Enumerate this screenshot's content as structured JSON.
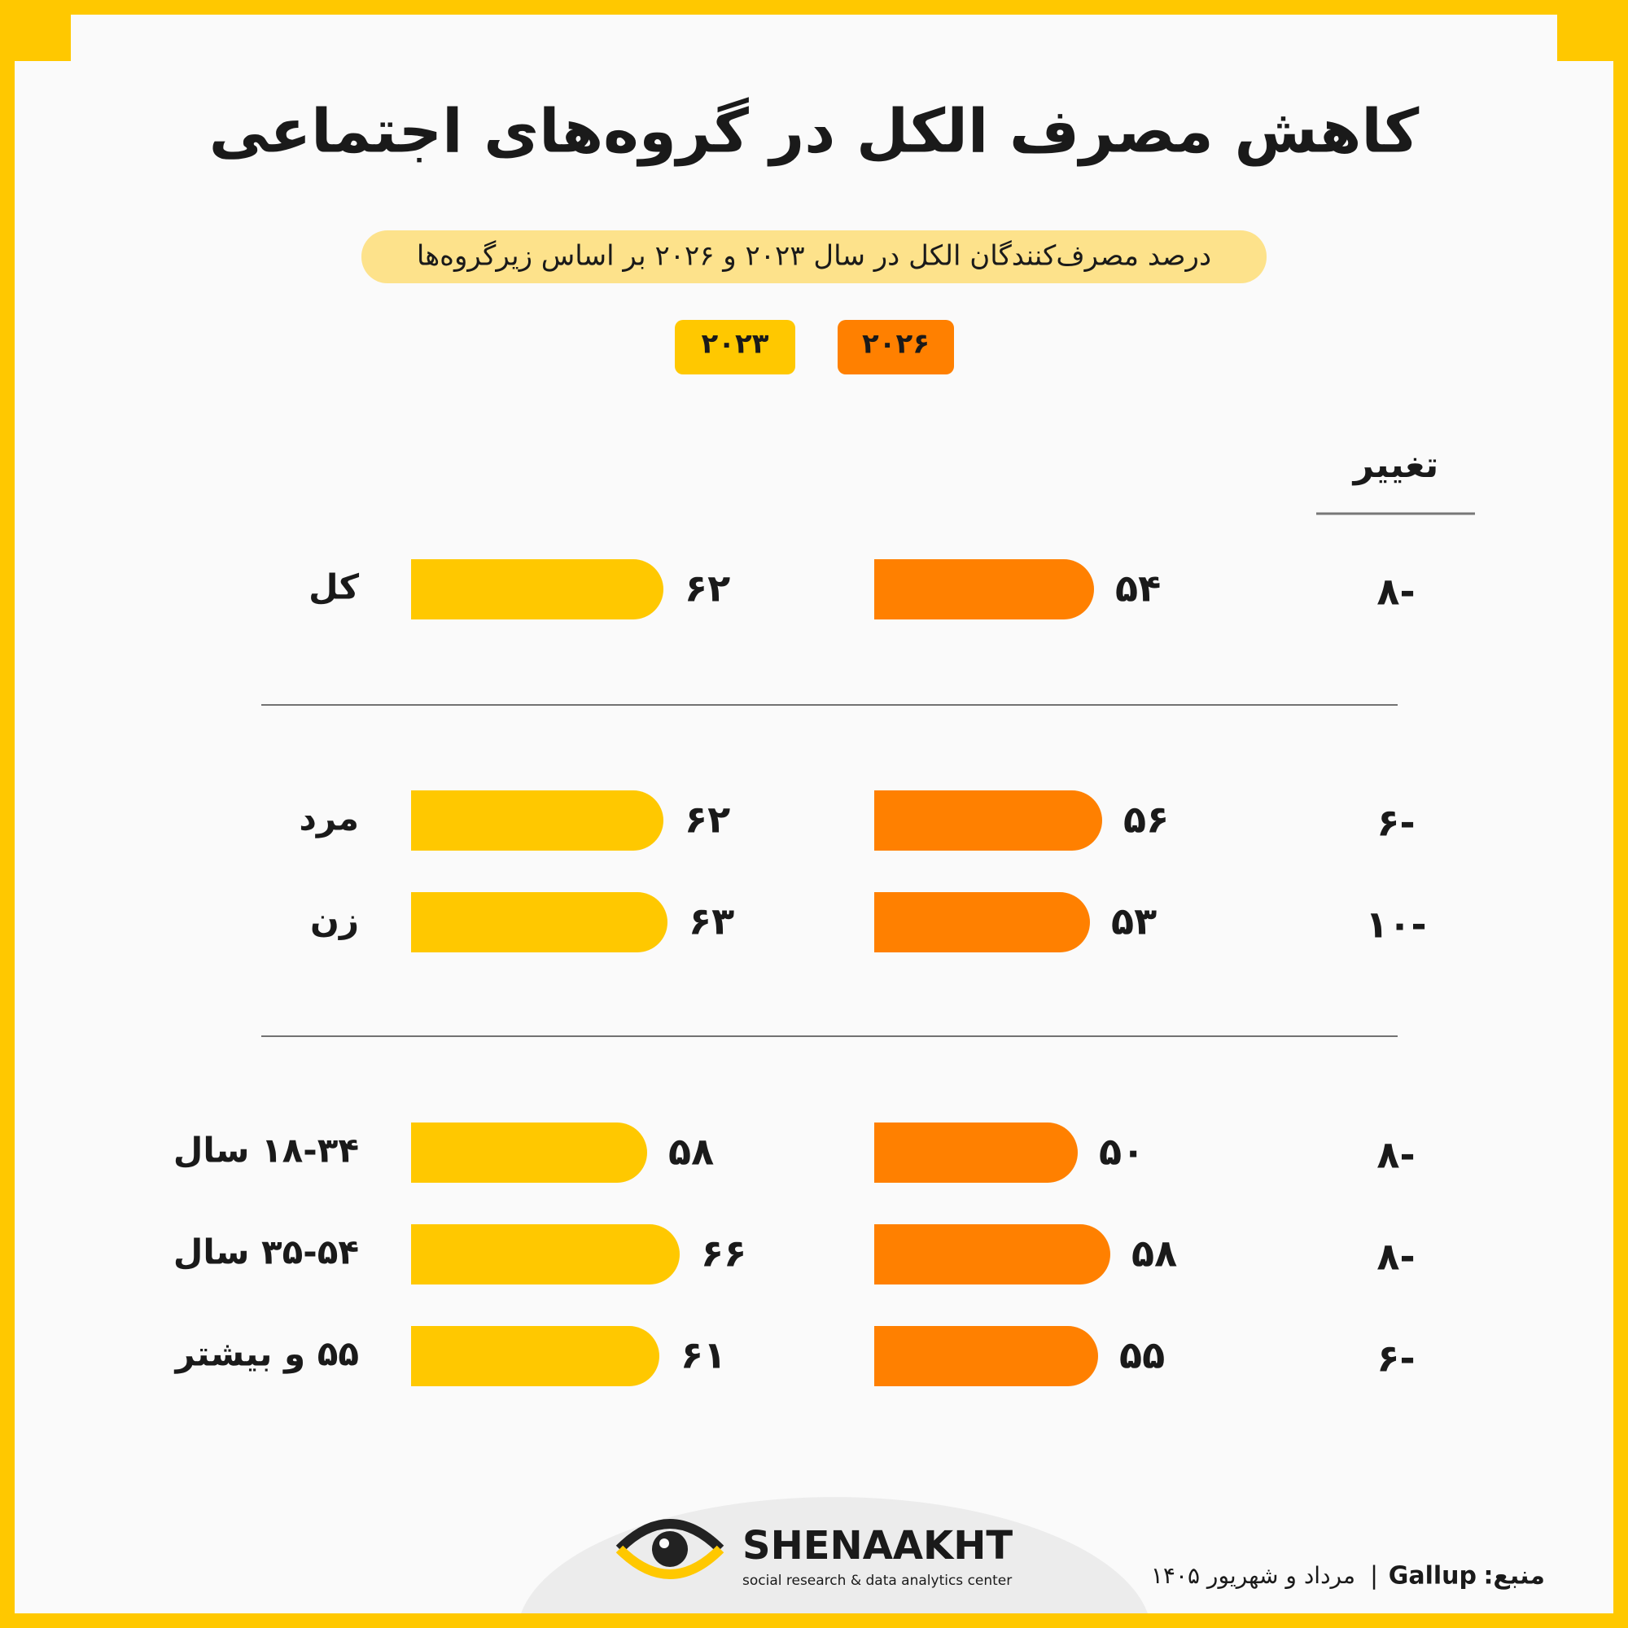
{
  "chart_data": {
    "type": "bar",
    "title": "کاهش مصرف الکل در گروه‌های اجتماعی",
    "subtitle": "درصد مصرف‌کنندگان الکل در سال ۲۰۲۳ و ۲۰۲۶ بر اساس زیرگروه‌ها",
    "categories": [
      "کل",
      "مرد",
      "زن",
      "۱۸-۳۴ سال",
      "۳۵-۵۴ سال",
      "۵۵ و بیشتر"
    ],
    "series": [
      {
        "name": "۲۰۲۳",
        "color": "#ffc800",
        "values": [
          62,
          62,
          63,
          58,
          66,
          61
        ],
        "value_labels": [
          "۶۲",
          "۶۲",
          "۶۳",
          "۵۸",
          "۶۶",
          "۶۱"
        ]
      },
      {
        "name": "۲۰۲۶",
        "color": "#ff8000",
        "values": [
          54,
          56,
          53,
          50,
          58,
          55
        ],
        "value_labels": [
          "۵۴",
          "۵۶",
          "۵۳",
          "۵۰",
          "۵۸",
          "۵۵"
        ]
      }
    ],
    "change": {
      "title": "تغییر",
      "color": "#e00000",
      "values": [
        -8,
        -6,
        -10,
        -8,
        -8,
        -6
      ],
      "value_labels": [
        "۸-",
        "۶-",
        "۱۰-",
        "۸-",
        "۸-",
        "۶-"
      ]
    }
  },
  "footer": {
    "brand": "SHENAAKHT",
    "tagline": "social research & data analytics center",
    "source_label": "منبع:",
    "source": "Gallup",
    "separator": "|",
    "date": "مرداد و شهریور ۱۴۰۵"
  }
}
